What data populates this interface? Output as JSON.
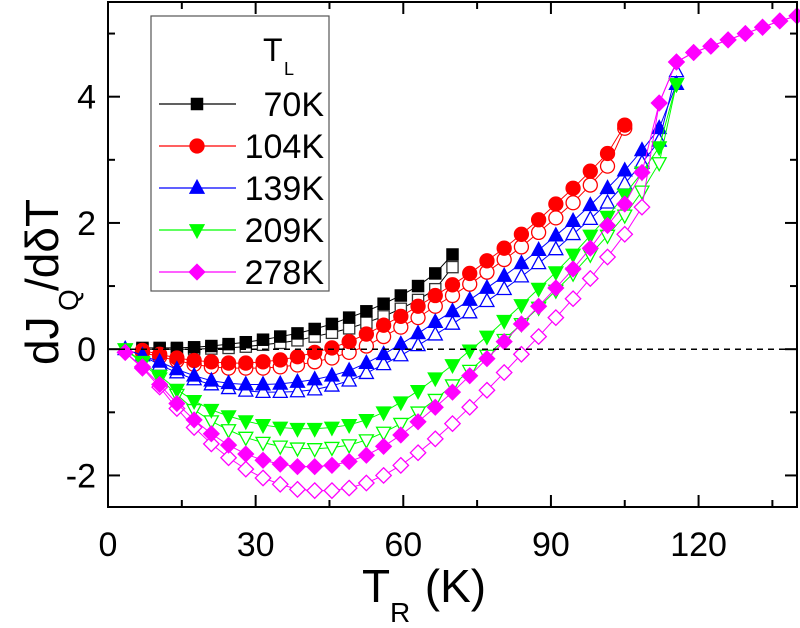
{
  "chart_data": {
    "type": "scatter",
    "title": "",
    "xlabel": "T_R (K)",
    "ylabel": "dJ_Q/dδT",
    "xlabel_main": "T",
    "xlabel_sub": "R",
    "xlabel_unit": " (K)",
    "ylabel_parts": [
      "dJ",
      "Q",
      "/dδT"
    ],
    "xlim": [
      0,
      140
    ],
    "ylim": [
      -2.5,
      5.5
    ],
    "xticks": [
      0,
      30,
      60,
      90,
      120
    ],
    "xtick_labels": [
      "0",
      "30",
      "60",
      "90",
      "120"
    ],
    "yticks": [
      -2,
      0,
      2,
      4
    ],
    "ytick_labels": [
      "-2",
      "0",
      "2",
      "4"
    ],
    "grid": false,
    "reference_line": {
      "y": 0,
      "style": "dashed",
      "color": "#000000"
    },
    "legend": {
      "title_main": "T",
      "title_sub": "L",
      "position": "upper-left",
      "entries": [
        "70K",
        "104K",
        "139K",
        "209K",
        "278K"
      ]
    },
    "series": [
      {
        "name": "70K",
        "color": "#000000",
        "marker": "square",
        "filled": {
          "x": [
            7,
            10.5,
            14,
            17.5,
            21,
            24.5,
            28,
            31.5,
            35,
            38.5,
            42,
            45.5,
            49,
            52.5,
            56,
            59.5,
            63,
            66.5,
            70
          ],
          "y": [
            0.02,
            0.02,
            0.02,
            0.03,
            0.05,
            0.08,
            0.11,
            0.15,
            0.2,
            0.25,
            0.32,
            0.4,
            0.5,
            0.6,
            0.72,
            0.85,
            1.0,
            1.2,
            1.5
          ]
        },
        "open": {
          "x": [
            7,
            10.5,
            14,
            17.5,
            21,
            24.5,
            28,
            31.5,
            35,
            38.5,
            42,
            45.5,
            49,
            52.5,
            56,
            59.5,
            63,
            66.5,
            70
          ],
          "y": [
            0,
            0,
            0,
            0,
            0.01,
            0.02,
            0.04,
            0.07,
            0.1,
            0.14,
            0.2,
            0.26,
            0.33,
            0.42,
            0.52,
            0.64,
            0.78,
            0.95,
            1.3
          ]
        }
      },
      {
        "name": "104K",
        "color": "#ff0000",
        "marker": "circle",
        "filled": {
          "x": [
            7,
            10.5,
            14,
            17.5,
            21,
            24.5,
            28,
            31.5,
            35,
            38.5,
            42,
            45.5,
            49,
            52.5,
            56,
            59.5,
            63,
            66.5,
            70,
            73.5,
            77,
            80.5,
            84,
            87.5,
            91,
            94.5,
            98,
            101.5,
            105
          ],
          "y": [
            -0.02,
            -0.08,
            -0.14,
            -0.18,
            -0.2,
            -0.22,
            -0.22,
            -0.2,
            -0.17,
            -0.12,
            -0.05,
            0.02,
            0.12,
            0.24,
            0.38,
            0.52,
            0.68,
            0.85,
            1.02,
            1.2,
            1.4,
            1.6,
            1.82,
            2.05,
            2.3,
            2.55,
            2.82,
            3.1,
            3.55
          ]
        },
        "open": {
          "x": [
            7,
            10.5,
            14,
            17.5,
            21,
            24.5,
            28,
            31.5,
            35,
            38.5,
            42,
            45.5,
            49,
            52.5,
            56,
            59.5,
            63,
            66.5,
            70,
            73.5,
            77,
            80.5,
            84,
            87.5,
            91,
            94.5,
            98,
            101.5,
            105
          ],
          "y": [
            -0.05,
            -0.12,
            -0.18,
            -0.24,
            -0.28,
            -0.3,
            -0.3,
            -0.3,
            -0.28,
            -0.25,
            -0.2,
            -0.14,
            -0.05,
            0.05,
            0.2,
            0.35,
            0.5,
            0.68,
            0.85,
            1.03,
            1.22,
            1.42,
            1.62,
            1.85,
            2.08,
            2.32,
            2.6,
            2.9,
            3.5
          ]
        }
      },
      {
        "name": "139K",
        "color": "#0000ff",
        "marker": "triangle-up",
        "filled": {
          "x": [
            3.5,
            7,
            10.5,
            14,
            17.5,
            21,
            24.5,
            28,
            31.5,
            35,
            38.5,
            42,
            45.5,
            49,
            52.5,
            56,
            59.5,
            63,
            66.5,
            70,
            73.5,
            77,
            80.5,
            84,
            87.5,
            91,
            94.5,
            98,
            101.5,
            105,
            108.5,
            112,
            115.5
          ],
          "y": [
            0,
            -0.1,
            -0.2,
            -0.32,
            -0.42,
            -0.5,
            -0.54,
            -0.56,
            -0.56,
            -0.55,
            -0.52,
            -0.48,
            -0.42,
            -0.34,
            -0.22,
            -0.08,
            0.08,
            0.25,
            0.43,
            0.6,
            0.78,
            0.97,
            1.16,
            1.36,
            1.57,
            1.8,
            2.03,
            2.28,
            2.55,
            2.83,
            3.15,
            3.5,
            4.2
          ]
        },
        "open": {
          "x": [
            3.5,
            7,
            10.5,
            14,
            17.5,
            21,
            24.5,
            28,
            31.5,
            35,
            38.5,
            42,
            45.5,
            49,
            52.5,
            56,
            59.5,
            63,
            66.5,
            70,
            73.5,
            77,
            80.5,
            84,
            87.5,
            91,
            94.5,
            98,
            101.5,
            105,
            108.5,
            112,
            115.5
          ],
          "y": [
            0,
            -0.1,
            -0.25,
            -0.37,
            -0.48,
            -0.56,
            -0.62,
            -0.66,
            -0.68,
            -0.68,
            -0.67,
            -0.64,
            -0.58,
            -0.5,
            -0.38,
            -0.24,
            -0.1,
            0.06,
            0.23,
            0.4,
            0.58,
            0.76,
            0.95,
            1.15,
            1.36,
            1.58,
            1.82,
            2.06,
            2.32,
            2.62,
            2.95,
            3.3,
            4.4
          ]
        }
      },
      {
        "name": "209K",
        "color": "#00ff00",
        "marker": "triangle-down",
        "filled": {
          "x": [
            3.5,
            7,
            10.5,
            14,
            17.5,
            21,
            24.5,
            28,
            31.5,
            35,
            38.5,
            42,
            45.5,
            49,
            52.5,
            56,
            59.5,
            63,
            66.5,
            70,
            73.5,
            77,
            80.5,
            84,
            87.5,
            91,
            94.5,
            98,
            101.5,
            105,
            108.5,
            112,
            115.5
          ],
          "y": [
            0,
            -0.2,
            -0.42,
            -0.64,
            -0.82,
            -0.96,
            -1.06,
            -1.14,
            -1.2,
            -1.24,
            -1.26,
            -1.26,
            -1.24,
            -1.2,
            -1.12,
            -1.0,
            -0.84,
            -0.66,
            -0.46,
            -0.25,
            -0.02,
            0.2,
            0.45,
            0.7,
            0.96,
            1.22,
            1.5,
            1.8,
            2.1,
            2.45,
            2.8,
            3.2,
            4.2
          ]
        },
        "open": {
          "x": [
            3.5,
            7,
            10.5,
            14,
            17.5,
            21,
            24.5,
            28,
            31.5,
            35,
            38.5,
            42,
            45.5,
            49,
            52.5,
            56,
            59.5,
            63,
            66.5,
            70,
            73.5,
            77,
            80.5,
            84,
            87.5,
            91,
            94.5,
            98,
            101.5,
            105,
            108.5,
            112,
            115.5
          ],
          "y": [
            0,
            -0.22,
            -0.46,
            -0.72,
            -0.96,
            -1.14,
            -1.28,
            -1.4,
            -1.48,
            -1.54,
            -1.57,
            -1.58,
            -1.56,
            -1.52,
            -1.44,
            -1.32,
            -1.18,
            -1.0,
            -0.8,
            -0.57,
            -0.34,
            -0.1,
            0.15,
            0.4,
            0.66,
            0.93,
            1.2,
            1.5,
            1.8,
            2.12,
            2.5,
            2.95,
            4.2
          ]
        }
      },
      {
        "name": "278K",
        "color": "#ff00ff",
        "marker": "diamond",
        "filled": {
          "x": [
            3.5,
            7,
            10.5,
            14,
            17.5,
            21,
            24.5,
            28,
            31.5,
            35,
            38.5,
            42,
            45.5,
            49,
            52.5,
            56,
            59.5,
            63,
            66.5,
            70,
            73.5,
            77,
            80.5,
            84,
            87.5,
            91,
            94.5,
            98,
            101.5,
            105,
            108.5,
            112,
            115.5,
            119,
            122.5,
            126,
            129.5,
            133,
            136.5,
            140
          ],
          "y": [
            -0.05,
            -0.28,
            -0.56,
            -0.86,
            -1.12,
            -1.34,
            -1.52,
            -1.66,
            -1.76,
            -1.82,
            -1.86,
            -1.86,
            -1.84,
            -1.78,
            -1.68,
            -1.54,
            -1.36,
            -1.15,
            -0.92,
            -0.68,
            -0.42,
            -0.15,
            0.12,
            0.4,
            0.68,
            0.97,
            1.27,
            1.6,
            1.96,
            2.3,
            2.8,
            3.9,
            4.55,
            4.7,
            4.8,
            4.9,
            5.0,
            5.1,
            5.2,
            5.28
          ]
        },
        "open": {
          "x": [
            3.5,
            7,
            10.5,
            14,
            17.5,
            21,
            24.5,
            28,
            31.5,
            35,
            38.5,
            42,
            45.5,
            49,
            52.5,
            56,
            59.5,
            63,
            66.5,
            70,
            73.5,
            77,
            80.5,
            84,
            87.5,
            91,
            94.5,
            98,
            101.5,
            105,
            108.5,
            112,
            115.5,
            119,
            122.5,
            126,
            129.5,
            133,
            136.5,
            140
          ],
          "y": [
            -0.05,
            -0.3,
            -0.6,
            -0.94,
            -1.24,
            -1.5,
            -1.72,
            -1.9,
            -2.04,
            -2.14,
            -2.22,
            -2.24,
            -2.24,
            -2.2,
            -2.12,
            -2.0,
            -1.84,
            -1.64,
            -1.42,
            -1.18,
            -0.92,
            -0.65,
            -0.37,
            -0.08,
            0.2,
            0.5,
            0.8,
            1.12,
            1.46,
            1.82,
            2.25,
            3.9,
            4.55,
            4.7,
            4.8,
            4.9,
            5.0,
            5.1,
            5.2,
            5.28
          ]
        }
      }
    ]
  }
}
